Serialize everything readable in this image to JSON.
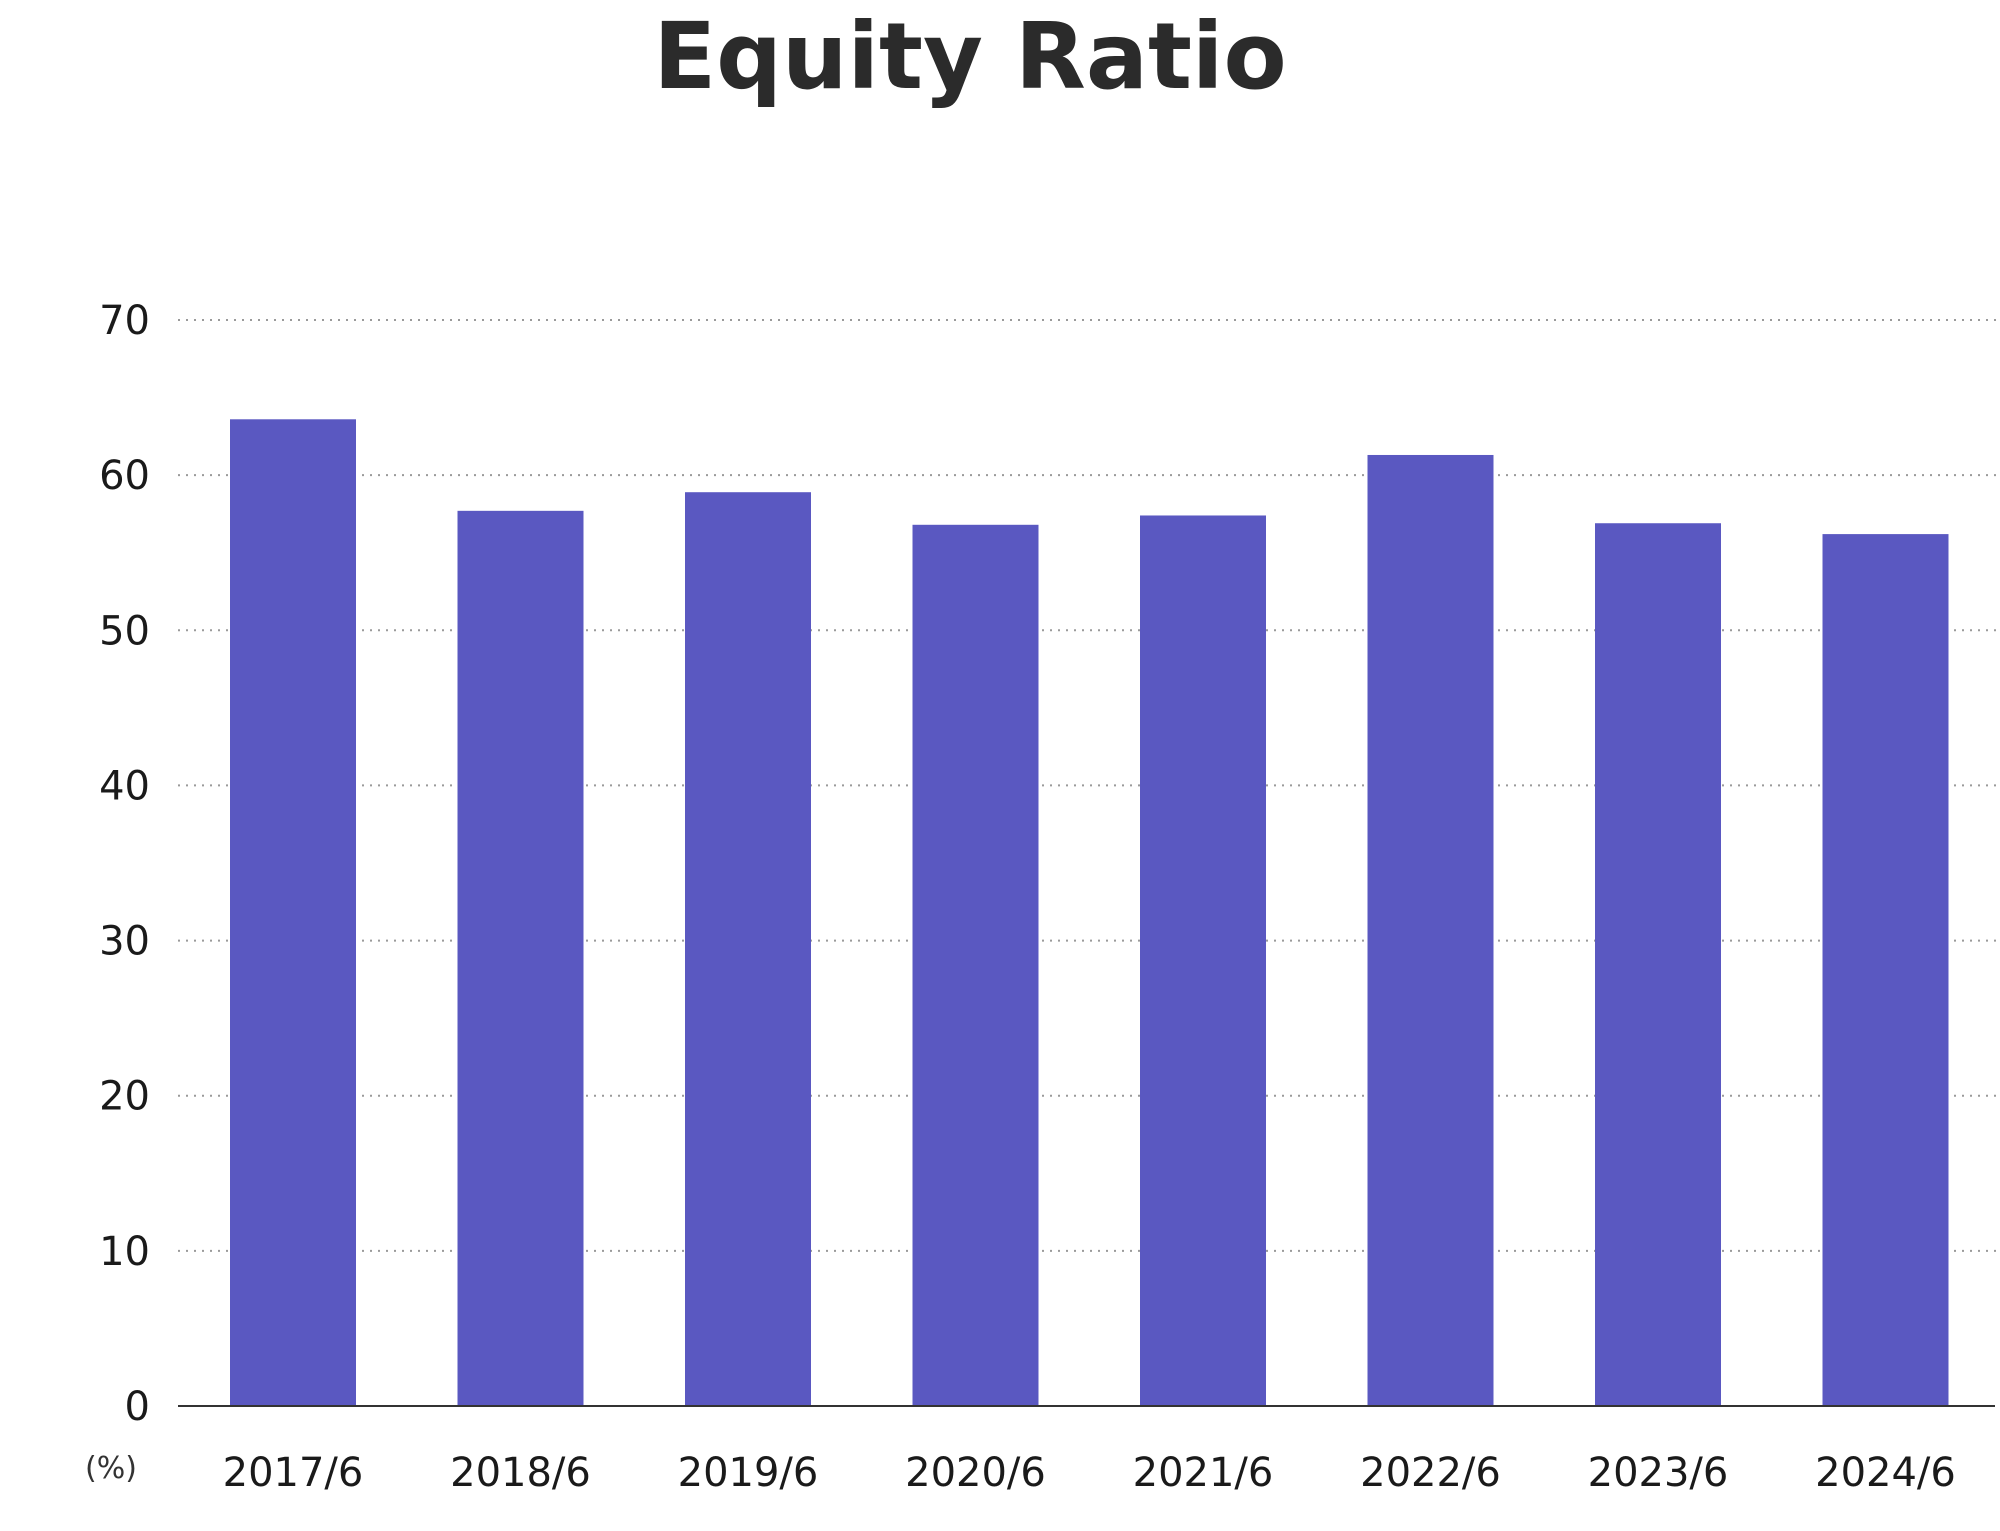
{
  "chart_data": {
    "type": "bar",
    "title": "Equity Ratio",
    "ylabel": "",
    "xlabel": "",
    "unit_label": "(%)",
    "categories": [
      "2017/6",
      "2018/6",
      "2019/6",
      "2020/6",
      "2021/6",
      "2022/6",
      "2023/6",
      "2024/6"
    ],
    "values": [
      63.6,
      57.7,
      58.9,
      56.8,
      57.4,
      61.3,
      56.9,
      56.2
    ],
    "ylim": [
      0,
      70
    ],
    "yticks": [
      "0",
      "10",
      "20",
      "30",
      "40",
      "50",
      "60",
      "70"
    ],
    "grid": true,
    "legend": "none",
    "colors": {
      "bar": "#5a58c1",
      "grid": "#9a9a9a",
      "axis": "#333333"
    }
  }
}
